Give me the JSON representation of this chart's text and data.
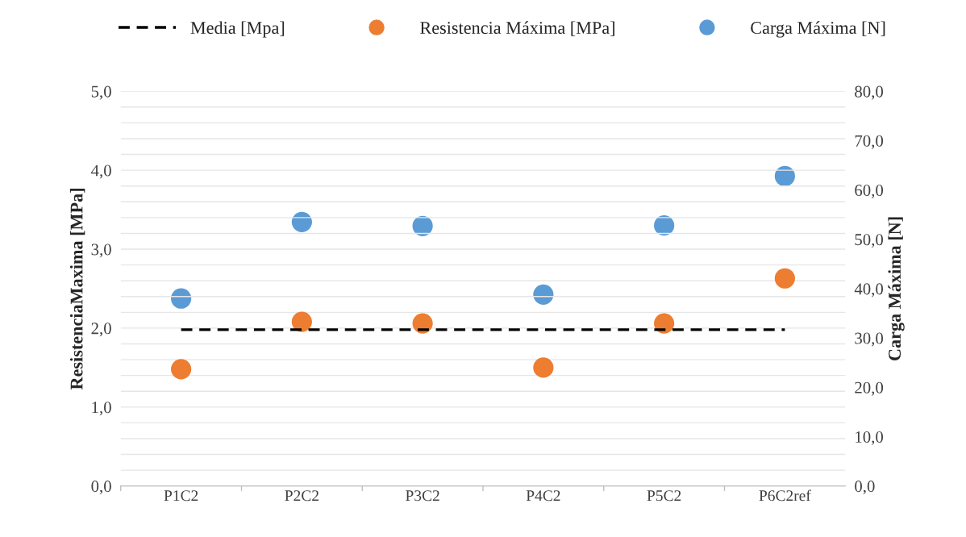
{
  "chart_data": {
    "type": "scatter",
    "categories": [
      "P1C2",
      "P2C2",
      "P3C2",
      "P4C2",
      "P5C2",
      "P6C2ref"
    ],
    "ylabel": "ResistenciaMaxima [MPa]",
    "y2label": "Carga Máxima [N]",
    "ylim": [
      0,
      5
    ],
    "yticks": [
      {
        "value": 0,
        "label": "0,0"
      },
      {
        "value": 0.2,
        "label": null
      },
      {
        "value": 0.4,
        "label": null
      },
      {
        "value": 0.6,
        "label": null
      },
      {
        "value": 0.8,
        "label": null
      },
      {
        "value": 1,
        "label": "1,0"
      },
      {
        "value": 1.2,
        "label": null
      },
      {
        "value": 1.4,
        "label": null
      },
      {
        "value": 1.6,
        "label": null
      },
      {
        "value": 1.8,
        "label": null
      },
      {
        "value": 2,
        "label": "2,0"
      },
      {
        "value": 2.2,
        "label": null
      },
      {
        "value": 2.4,
        "label": null
      },
      {
        "value": 2.6,
        "label": null
      },
      {
        "value": 2.8,
        "label": null
      },
      {
        "value": 3,
        "label": "3,0"
      },
      {
        "value": 3.2,
        "label": null
      },
      {
        "value": 3.4,
        "label": null
      },
      {
        "value": 3.6,
        "label": null
      },
      {
        "value": 3.8,
        "label": null
      },
      {
        "value": 4,
        "label": "4,0"
      },
      {
        "value": 4.2,
        "label": null
      },
      {
        "value": 4.4,
        "label": null
      },
      {
        "value": 4.6,
        "label": null
      },
      {
        "value": 4.8,
        "label": null
      },
      {
        "value": 5,
        "label": "5,0"
      }
    ],
    "y2lim": [
      0,
      80
    ],
    "y2ticks": [
      {
        "value": 0,
        "label": "0,0"
      },
      {
        "value": 10,
        "label": "10,0"
      },
      {
        "value": 20,
        "label": "20,0"
      },
      {
        "value": 30,
        "label": "30,0"
      },
      {
        "value": 40,
        "label": "40,0"
      },
      {
        "value": 50,
        "label": "50,0"
      },
      {
        "value": 60,
        "label": "60,0"
      },
      {
        "value": 70,
        "label": "70,0"
      },
      {
        "value": 80,
        "label": "80,0"
      }
    ],
    "grid": "y",
    "legend": "top",
    "marker": "circle",
    "series": [
      {
        "name": "Media [Mpa]",
        "type": "line",
        "line_style": "dashed",
        "marker": "none",
        "color": "#000000",
        "values": [
          1.98,
          1.98,
          1.98,
          1.98,
          1.98,
          1.98
        ]
      },
      {
        "name": "Resistencia Máxima [MPa]",
        "color": "#ed7d31",
        "values": [
          1.48,
          2.08,
          2.06,
          1.5,
          2.06,
          2.63
        ]
      },
      {
        "name": "Carga Máxima [N]",
        "axis": "y2",
        "color": "#5b9bd5",
        "values": [
          38.0,
          53.5,
          52.7,
          38.8,
          52.8,
          62.8
        ]
      }
    ]
  }
}
